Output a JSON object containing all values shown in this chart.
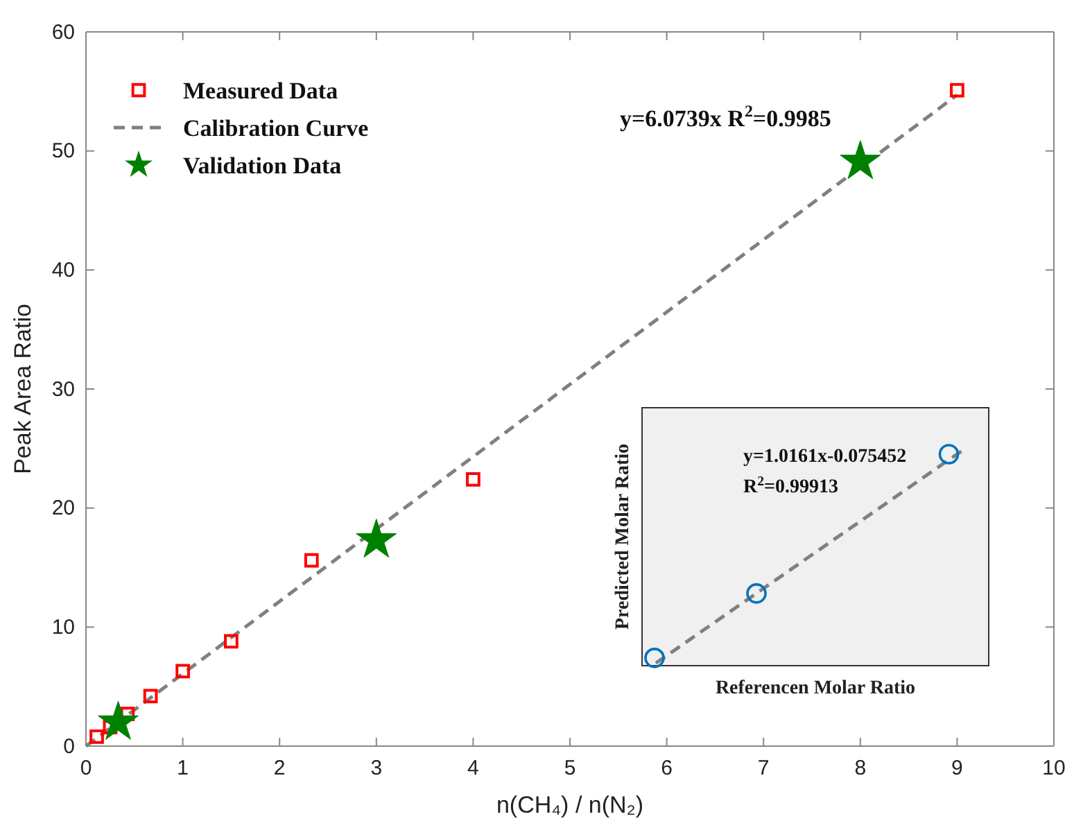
{
  "chart_data": [
    {
      "type": "scatter",
      "xlabel": "n(CH₄) / n(N₂)",
      "ylabel": "Peak Area Ratio",
      "xlim": [
        0,
        10
      ],
      "ylim": [
        0,
        60
      ],
      "xticks": [
        0,
        1,
        2,
        3,
        4,
        5,
        6,
        7,
        8,
        9,
        10
      ],
      "yticks": [
        0,
        10,
        20,
        30,
        40,
        50,
        60
      ],
      "grid": false,
      "legend": "top left",
      "annotations": [
        "y=6.0739x  R$^{2}$=0.9985"
      ],
      "series": [
        {
          "name": "Measured Data",
          "type": "scatter",
          "marker": "square",
          "color": "#ff0000",
          "x": [
            0.111,
            0.25,
            0.429,
            0.667,
            1,
            1.5,
            2.33,
            4,
            9
          ],
          "values": [
            0.8,
            1.6,
            2.7,
            4.2,
            6.3,
            8.8,
            15.6,
            22.4,
            55.1
          ]
        },
        {
          "name": "Calibration Curve",
          "type": "line",
          "marker": "none",
          "line_style": "dashed",
          "color": "#808080",
          "x": [
            0,
            9
          ],
          "values": [
            0,
            54.7
          ]
        },
        {
          "name": "Validation Data",
          "type": "scatter",
          "marker": "star",
          "color": "#008000",
          "x": [
            0.333,
            3,
            8
          ],
          "values": [
            2.0,
            17.3,
            49.1
          ]
        }
      ]
    },
    {
      "type": "other",
      "xlabel": "Referencen Molar Ratio",
      "ylabel": "Predicted Molar Ratio",
      "annotations": [
        "y=1.0161x-0.075452",
        "R$^{2}$=0.99913"
      ]
    }
  ]
}
